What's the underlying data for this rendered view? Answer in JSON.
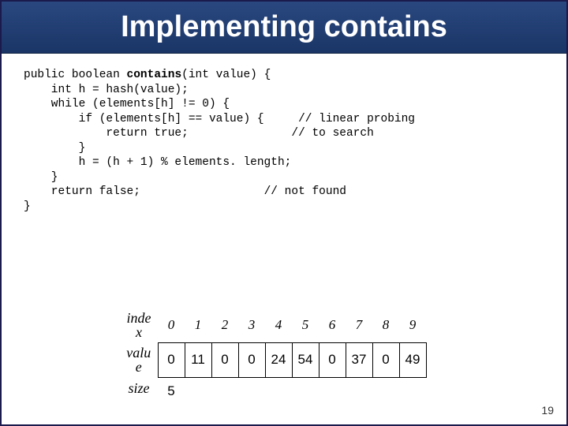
{
  "title": "Implementing contains",
  "code": {
    "l1": "public boolean ",
    "l1b": "contains",
    "l1c": "(int value) {",
    "l2": "    int h = hash(value);",
    "l3": "    while (elements[h] != 0) {",
    "l4": "        if (elements[h] == value) {",
    "c4": "     // linear probing",
    "l5": "            return true;",
    "c5": "               // to search",
    "l6": "        }",
    "l7": "        h = (h + 1) % elements. length;",
    "l8": "    }",
    "l9": "    return false;",
    "c9": "                  // not found",
    "l10": "}"
  },
  "table": {
    "index_label": "inde\nx",
    "value_label": "valu\ne",
    "size_label": "size",
    "indices": [
      "0",
      "1",
      "2",
      "3",
      "4",
      "5",
      "6",
      "7",
      "8",
      "9"
    ],
    "values": [
      "0",
      "11",
      "0",
      "0",
      "24",
      "54",
      "0",
      "37",
      "0",
      "49"
    ],
    "size": "5"
  },
  "page_number": "19",
  "colors": {
    "title_bg": "#1f3a6e",
    "title_text": "#ffffff",
    "border": "#1a1a4d"
  }
}
